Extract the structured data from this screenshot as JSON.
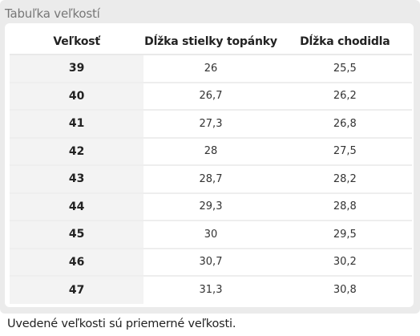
{
  "panel": {
    "title": "Tabuľka veľkostí"
  },
  "table": {
    "headers": [
      "Veľkosť",
      "Dĺžka stielky topánky",
      "Dĺžka chodidla"
    ],
    "rows": [
      [
        "39",
        "26",
        "25,5"
      ],
      [
        "40",
        "26,7",
        "26,2"
      ],
      [
        "41",
        "27,3",
        "26,8"
      ],
      [
        "42",
        "28",
        "27,5"
      ],
      [
        "43",
        "28,7",
        "28,2"
      ],
      [
        "44",
        "29,3",
        "28,8"
      ],
      [
        "45",
        "30",
        "29,5"
      ],
      [
        "46",
        "30,7",
        "30,2"
      ],
      [
        "47",
        "31,3",
        "30,8"
      ]
    ]
  },
  "note": "Uvedené veľkosti sú priemerné veľkosti.",
  "colors": {
    "panel_bg": "#ebebeb",
    "size_col_bg": "#f3f3f3",
    "title_text": "#777777"
  }
}
